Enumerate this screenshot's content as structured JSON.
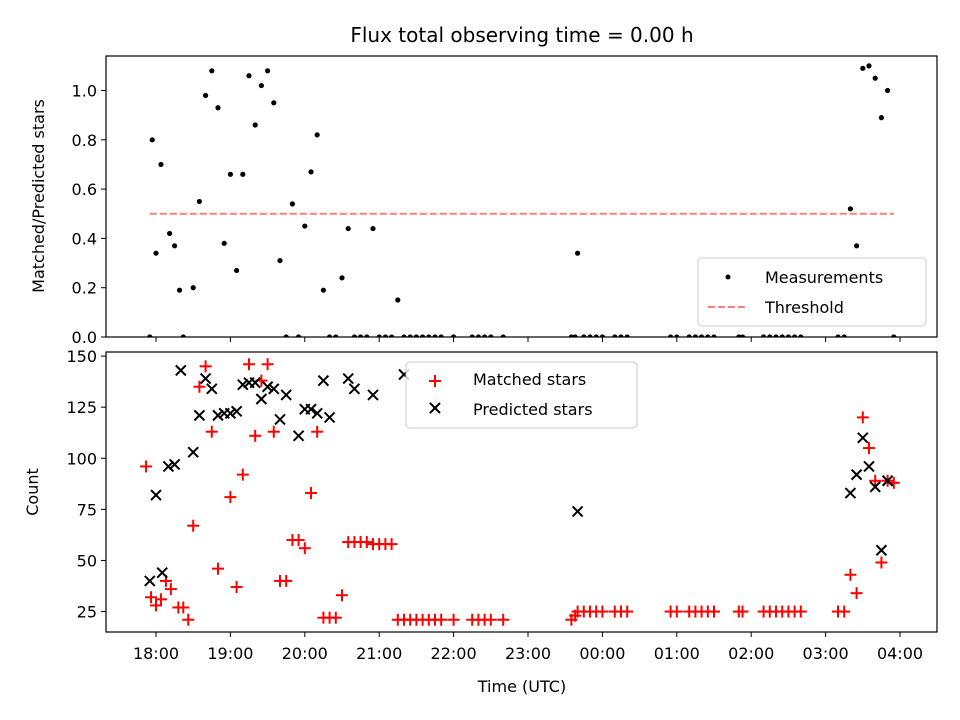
{
  "chart_data": [
    {
      "type": "scatter",
      "title": "Flux total observing time = 0.00 h",
      "xlabel": "",
      "ylabel": "Matched/Predicted stars",
      "ylim": [
        0,
        1.14
      ],
      "yticks": [
        "0.0",
        "0.2",
        "0.4",
        "0.6",
        "0.8",
        "1.0"
      ],
      "ytick_values": [
        0,
        0.2,
        0.4,
        0.6,
        0.8,
        1.0
      ],
      "grid": false,
      "legend_position": "lower-right",
      "series": [
        {
          "name": "Measurements",
          "marker": "dot",
          "color": "#000000",
          "points": [
            [
              "17:55",
              0
            ],
            [
              "17:57",
              0.8
            ],
            [
              "18:00",
              0.34
            ],
            [
              "18:04",
              0.7
            ],
            [
              "18:11",
              0.42
            ],
            [
              "18:15",
              0.37
            ],
            [
              "18:19",
              0.19
            ],
            [
              "18:22",
              0
            ],
            [
              "18:30",
              0.2
            ],
            [
              "18:35",
              0.55
            ],
            [
              "18:40",
              0.98
            ],
            [
              "18:45",
              1.08
            ],
            [
              "18:50",
              0.93
            ],
            [
              "18:55",
              0.38
            ],
            [
              "19:00",
              0.66
            ],
            [
              "19:05",
              0.27
            ],
            [
              "19:10",
              0.66
            ],
            [
              "19:15",
              1.06
            ],
            [
              "19:20",
              0.86
            ],
            [
              "19:25",
              1.02
            ],
            [
              "19:30",
              1.08
            ],
            [
              "19:35",
              0.95
            ],
            [
              "19:40",
              0.31
            ],
            [
              "19:45",
              0
            ],
            [
              "19:50",
              0.54
            ],
            [
              "19:55",
              0
            ],
            [
              "20:00",
              0.45
            ],
            [
              "20:05",
              0.67
            ],
            [
              "20:10",
              0.82
            ],
            [
              "20:15",
              0.19
            ],
            [
              "20:20",
              0
            ],
            [
              "20:25",
              0
            ],
            [
              "20:30",
              0.24
            ],
            [
              "20:35",
              0.44
            ],
            [
              "20:40",
              0
            ],
            [
              "20:45",
              0
            ],
            [
              "20:50",
              0
            ],
            [
              "20:55",
              0.44
            ],
            [
              "21:00",
              0
            ],
            [
              "21:05",
              0
            ],
            [
              "21:10",
              0
            ],
            [
              "21:15",
              0.15
            ],
            [
              "21:20",
              0
            ],
            [
              "21:25",
              0
            ],
            [
              "21:30",
              0
            ],
            [
              "21:35",
              0
            ],
            [
              "21:40",
              0
            ],
            [
              "21:45",
              0
            ],
            [
              "21:50",
              0
            ],
            [
              "22:00",
              0
            ],
            [
              "22:15",
              0
            ],
            [
              "22:20",
              0
            ],
            [
              "22:25",
              0
            ],
            [
              "22:30",
              0
            ],
            [
              "22:40",
              0
            ],
            [
              "23:35",
              0
            ],
            [
              "23:38",
              0
            ],
            [
              "23:40",
              0.34
            ],
            [
              "23:45",
              0
            ],
            [
              "23:50",
              0
            ],
            [
              "23:55",
              0
            ],
            [
              "00:00",
              0
            ],
            [
              "00:10",
              0
            ],
            [
              "00:15",
              0
            ],
            [
              "00:20",
              0
            ],
            [
              "00:55",
              0
            ],
            [
              "01:00",
              0
            ],
            [
              "01:10",
              0
            ],
            [
              "01:15",
              0
            ],
            [
              "01:20",
              0
            ],
            [
              "01:25",
              0
            ],
            [
              "01:30",
              0
            ],
            [
              "01:50",
              0
            ],
            [
              "01:53",
              0
            ],
            [
              "02:10",
              0
            ],
            [
              "02:15",
              0
            ],
            [
              "02:20",
              0
            ],
            [
              "02:25",
              0
            ],
            [
              "02:30",
              0
            ],
            [
              "02:35",
              0
            ],
            [
              "02:40",
              0
            ],
            [
              "03:10",
              0
            ],
            [
              "03:15",
              0
            ],
            [
              "03:20",
              0.52
            ],
            [
              "03:25",
              0.37
            ],
            [
              "03:30",
              1.09
            ],
            [
              "03:35",
              1.1
            ],
            [
              "03:40",
              1.05
            ],
            [
              "03:45",
              0.89
            ],
            [
              "03:50",
              1.0
            ],
            [
              "03:55",
              0
            ]
          ]
        },
        {
          "name": "Threshold",
          "marker": "dashed-line",
          "color": "#ff7f7f",
          "points": [
            [
              "17:55",
              0.5
            ],
            [
              "03:55",
              0.5
            ]
          ]
        }
      ]
    },
    {
      "type": "scatter",
      "title": "",
      "xlabel": "Time (UTC)",
      "ylabel": "Count",
      "ylim": [
        15,
        152
      ],
      "yticks": [
        "25",
        "50",
        "75",
        "100",
        "125",
        "150"
      ],
      "ytick_values": [
        25,
        50,
        75,
        100,
        125,
        150
      ],
      "xticks": [
        "18:00",
        "19:00",
        "20:00",
        "21:00",
        "22:00",
        "23:00",
        "00:00",
        "01:00",
        "02:00",
        "03:00",
        "04:00"
      ],
      "grid": false,
      "legend_position": "upper-center",
      "series": [
        {
          "name": "Matched stars",
          "marker": "plus",
          "color": "#ff0000",
          "points": [
            [
              "17:52",
              96
            ],
            [
              "17:56",
              32
            ],
            [
              "18:00",
              28
            ],
            [
              "18:04",
              31
            ],
            [
              "18:08",
              40
            ],
            [
              "18:12",
              36
            ],
            [
              "18:18",
              27
            ],
            [
              "18:22",
              27
            ],
            [
              "18:26",
              21
            ],
            [
              "18:30",
              67
            ],
            [
              "18:35",
              135
            ],
            [
              "18:40",
              145
            ],
            [
              "18:45",
              113
            ],
            [
              "18:50",
              46
            ],
            [
              "19:00",
              81
            ],
            [
              "19:05",
              37
            ],
            [
              "19:10",
              92
            ],
            [
              "19:15",
              146
            ],
            [
              "19:20",
              111
            ],
            [
              "19:25",
              138
            ],
            [
              "19:30",
              146
            ],
            [
              "19:35",
              113
            ],
            [
              "19:40",
              40
            ],
            [
              "19:45",
              40
            ],
            [
              "19:50",
              60
            ],
            [
              "19:55",
              60
            ],
            [
              "20:00",
              56
            ],
            [
              "20:05",
              83
            ],
            [
              "20:10",
              113
            ],
            [
              "20:15",
              22
            ],
            [
              "20:20",
              22
            ],
            [
              "20:25",
              22
            ],
            [
              "20:30",
              33
            ],
            [
              "20:35",
              59
            ],
            [
              "20:40",
              59
            ],
            [
              "20:45",
              59
            ],
            [
              "20:50",
              59
            ],
            [
              "20:55",
              58
            ],
            [
              "21:00",
              58
            ],
            [
              "21:05",
              58
            ],
            [
              "21:10",
              58
            ],
            [
              "21:15",
              21
            ],
            [
              "21:20",
              21
            ],
            [
              "21:25",
              21
            ],
            [
              "21:30",
              21
            ],
            [
              "21:35",
              21
            ],
            [
              "21:40",
              21
            ],
            [
              "21:45",
              21
            ],
            [
              "21:50",
              21
            ],
            [
              "22:00",
              21
            ],
            [
              "22:15",
              21
            ],
            [
              "22:20",
              21
            ],
            [
              "22:25",
              21
            ],
            [
              "22:30",
              21
            ],
            [
              "22:40",
              21
            ],
            [
              "23:35",
              21
            ],
            [
              "23:38",
              23
            ],
            [
              "23:40",
              25
            ],
            [
              "23:45",
              25
            ],
            [
              "23:50",
              25
            ],
            [
              "23:55",
              25
            ],
            [
              "00:00",
              25
            ],
            [
              "00:10",
              25
            ],
            [
              "00:15",
              25
            ],
            [
              "00:20",
              25
            ],
            [
              "00:55",
              25
            ],
            [
              "01:00",
              25
            ],
            [
              "01:10",
              25
            ],
            [
              "01:15",
              25
            ],
            [
              "01:20",
              25
            ],
            [
              "01:25",
              25
            ],
            [
              "01:30",
              25
            ],
            [
              "01:50",
              25
            ],
            [
              "01:53",
              25
            ],
            [
              "02:10",
              25
            ],
            [
              "02:15",
              25
            ],
            [
              "02:20",
              25
            ],
            [
              "02:25",
              25
            ],
            [
              "02:30",
              25
            ],
            [
              "02:35",
              25
            ],
            [
              "02:40",
              25
            ],
            [
              "03:10",
              25
            ],
            [
              "03:15",
              25
            ],
            [
              "03:20",
              43
            ],
            [
              "03:25",
              34
            ],
            [
              "03:30",
              120
            ],
            [
              "03:35",
              105
            ],
            [
              "03:40",
              89
            ],
            [
              "03:45",
              49
            ],
            [
              "03:50",
              89
            ],
            [
              "03:55",
              88
            ]
          ]
        },
        {
          "name": "Predicted stars",
          "marker": "x",
          "color": "#000000",
          "points": [
            [
              "17:55",
              40
            ],
            [
              "18:00",
              82
            ],
            [
              "18:05",
              44
            ],
            [
              "18:10",
              96
            ],
            [
              "18:15",
              97
            ],
            [
              "18:20",
              143
            ],
            [
              "18:30",
              103
            ],
            [
              "18:35",
              121
            ],
            [
              "18:40",
              139
            ],
            [
              "18:45",
              134
            ],
            [
              "18:50",
              121
            ],
            [
              "18:55",
              122
            ],
            [
              "19:00",
              122
            ],
            [
              "19:05",
              123
            ],
            [
              "19:10",
              136
            ],
            [
              "19:15",
              137
            ],
            [
              "19:20",
              137
            ],
            [
              "19:25",
              129
            ],
            [
              "19:30",
              135
            ],
            [
              "19:35",
              134
            ],
            [
              "19:40",
              119
            ],
            [
              "19:45",
              131
            ],
            [
              "19:55",
              111
            ],
            [
              "20:00",
              124
            ],
            [
              "20:05",
              124
            ],
            [
              "20:10",
              122
            ],
            [
              "20:15",
              138
            ],
            [
              "20:20",
              120
            ],
            [
              "20:35",
              139
            ],
            [
              "20:40",
              134
            ],
            [
              "20:55",
              131
            ],
            [
              "21:20",
              141
            ],
            [
              "23:40",
              74
            ],
            [
              "03:20",
              83
            ],
            [
              "03:25",
              92
            ],
            [
              "03:30",
              110
            ],
            [
              "03:35",
              96
            ],
            [
              "03:40",
              86
            ],
            [
              "03:45",
              55
            ],
            [
              "03:50",
              89
            ]
          ]
        }
      ]
    }
  ]
}
